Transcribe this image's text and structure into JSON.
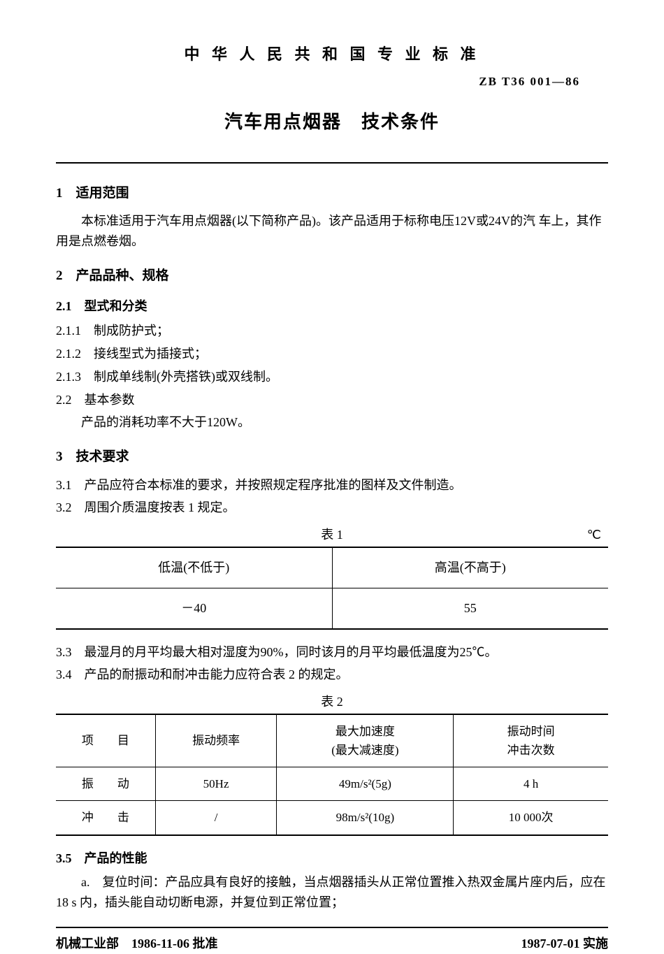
{
  "header": {
    "org_title": "中 华 人 民 共 和 国 专 业 标 准",
    "doc_code": "ZB T36 001—86",
    "main_title": "汽车用点烟器　技术条件"
  },
  "s1": {
    "heading": "1　适用范围",
    "p1": "本标准适用于汽车用点烟器(以下简称产品)。该产品适用于标称电压12V或24V的汽 车上，其作用是点燃卷烟。"
  },
  "s2": {
    "heading": "2　产品品种、规格",
    "h21": "2.1　型式和分类",
    "i211": "2.1.1　制成防护式；",
    "i212": "2.1.2　接线型式为插接式；",
    "i213": "2.1.3　制成单线制(外壳搭铁)或双线制。",
    "h22": "2.2　基本参数",
    "p22": "产品的消耗功率不大于120W。"
  },
  "s3": {
    "heading": "3　技术要求",
    "i31": "3.1　产品应符合本标准的要求，并按照规定程序批准的图样及文件制造。",
    "i32": "3.2　周围介质温度按表 1 规定。",
    "table1": {
      "caption": "表 1",
      "unit": "℃",
      "headers": [
        "低温(不低于)",
        "高温(不高于)"
      ],
      "row": [
        "－40",
        "55"
      ]
    },
    "i33": "3.3　最湿月的月平均最大相对湿度为90%，同时该月的月平均最低温度为25℃。",
    "i34": "3.4　产品的耐振动和耐冲击能力应符合表 2 的规定。",
    "table2": {
      "caption": "表 2",
      "headers": [
        "项　　目",
        "振动频率",
        "最大加速度\n(最大减速度)",
        "振动时间\n冲击次数"
      ],
      "rows": [
        [
          "振　　动",
          "50Hz",
          "49m/s²(5g)",
          "4 h"
        ],
        [
          "冲　　击",
          "/",
          "98m/s²(10g)",
          "10 000次"
        ]
      ]
    },
    "h35": "3.5　产品的性能",
    "p35a": "a.　复位时间：产品应具有良好的接触，当点烟器插头从正常位置推入热双金属片座内后，应在18 s 内，插头能自动切断电源，并复位到正常位置；"
  },
  "footer": {
    "left": "机械工业部　1986-11-06 批准",
    "right": "1987-07-01 实施"
  }
}
